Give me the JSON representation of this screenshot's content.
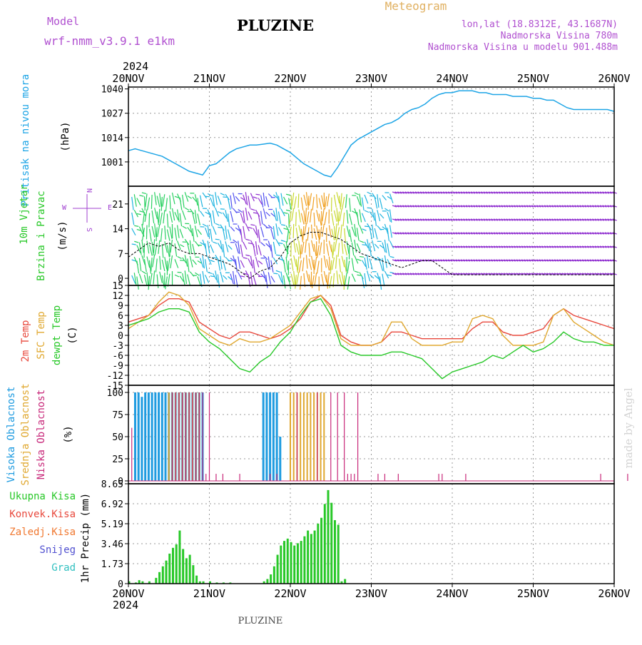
{
  "header": {
    "model_label": "Model",
    "model_name": "wrf-nmm_v3.9.1  e1km",
    "station": "PLUZINE",
    "product": "Meteogram",
    "coords": "lon,lat (18.8312E, 43.1687N)",
    "elevation": "Nadmorska Visina 780m",
    "model_elevation": "Nadmorska Visina u modelu 901.488m",
    "footer": "PLUZINE",
    "watermark": "made by Angel"
  },
  "colors": {
    "pressure": "#1ea5e6",
    "wind_label": "#28c828",
    "wind_label2": "#a040d0",
    "temp2m": "#e8483c",
    "sfc": "#e0a830",
    "dew": "#28c828",
    "high_cloud": "#1e9be0",
    "mid_cloud": "#e0a830",
    "low_cloud": "#c8287a",
    "total_precip": "#28c828",
    "conv": "#e8483c",
    "frz": "#f07830",
    "snow": "#5050d0",
    "hail": "#30c0c0",
    "header_purple": "#b050d0",
    "header_orange": "#e0b060"
  },
  "x_axis": {
    "year": "2024",
    "ticks": [
      "20NOV",
      "21NOV",
      "22NOV",
      "23NOV",
      "24NOV",
      "25NOV",
      "26NOV"
    ],
    "range_hours": [
      0,
      144
    ]
  },
  "chart_data": [
    {
      "type": "line",
      "name": "pressure",
      "ylabels": [
        "Pritisak na nivou mora",
        "(hPa)"
      ],
      "yticks": [
        "1001",
        "1014",
        "1027",
        "1040"
      ],
      "ylim": [
        988,
        1041
      ],
      "x": [
        0,
        2,
        4,
        6,
        8,
        10,
        12,
        14,
        16,
        18,
        20,
        22,
        24,
        26,
        28,
        30,
        32,
        34,
        36,
        38,
        40,
        42,
        44,
        46,
        48,
        50,
        52,
        54,
        56,
        58,
        60,
        62,
        64,
        66,
        68,
        70,
        72,
        74,
        76,
        78,
        80,
        82,
        84,
        86,
        88,
        90,
        92,
        94,
        96,
        98,
        100,
        102,
        104,
        106,
        108,
        110,
        112,
        114,
        116,
        118,
        120,
        122,
        124,
        126,
        128,
        130,
        132,
        134,
        136,
        138,
        140,
        142,
        144
      ],
      "values": [
        1007,
        1008,
        1007,
        1006,
        1005,
        1004,
        1002,
        1000,
        998,
        996,
        995,
        994,
        999,
        1000,
        1003,
        1006,
        1008,
        1009,
        1010,
        1010,
        1010.5,
        1011,
        1010,
        1008,
        1006,
        1003,
        1000,
        998,
        996,
        994,
        993,
        998,
        1004,
        1010,
        1013,
        1015,
        1017,
        1019,
        1021,
        1022,
        1024,
        1027,
        1029,
        1030,
        1032,
        1035,
        1037,
        1038,
        1038,
        1039,
        1039,
        1039,
        1038,
        1038,
        1037,
        1037,
        1037,
        1036,
        1036,
        1036,
        1035,
        1035,
        1034,
        1034,
        1032,
        1030,
        1029,
        1029,
        1029,
        1029,
        1029,
        1029,
        1028
      ]
    },
    {
      "type": "line",
      "name": "wind",
      "ylabels": [
        "10m Vjetar",
        "Brzina i Pravac",
        "(m/s)"
      ],
      "legend_compass": [
        "N",
        "W",
        "E",
        "S"
      ],
      "yticks": [
        "0",
        "7",
        "14",
        "21"
      ],
      "ylim": [
        -2,
        26
      ],
      "x": [
        0,
        3,
        6,
        9,
        12,
        15,
        18,
        21,
        24,
        27,
        30,
        33,
        36,
        39,
        42,
        45,
        48,
        51,
        54,
        57,
        60,
        63,
        66,
        69,
        72,
        75,
        78,
        81,
        84,
        87,
        90,
        93,
        96,
        99,
        102,
        105,
        108,
        111,
        114,
        117,
        120,
        123,
        126,
        129,
        132,
        135,
        138,
        141,
        144
      ],
      "values": [
        6,
        8,
        10,
        9,
        10,
        8,
        7,
        7,
        6,
        5,
        4,
        2,
        0,
        2,
        3,
        6,
        10,
        12,
        13,
        13,
        12,
        11,
        9,
        7,
        6,
        5,
        4,
        3,
        4,
        5,
        5,
        3,
        1,
        1,
        1,
        1,
        1,
        1,
        1,
        1,
        1,
        1,
        1,
        1,
        1,
        1,
        1,
        1,
        1
      ]
    },
    {
      "type": "line",
      "name": "temperature",
      "ylabels": [
        "2m Temp",
        "SFC Temp",
        "dewpt Temp",
        "(C)"
      ],
      "yticks": [
        "-15",
        "-12",
        "-9",
        "-6",
        "-3",
        "0",
        "3",
        "6",
        "9",
        "12",
        "15"
      ],
      "ylim": [
        -15,
        15
      ],
      "x": [
        0,
        3,
        6,
        9,
        12,
        15,
        18,
        21,
        24,
        27,
        30,
        33,
        36,
        39,
        42,
        45,
        48,
        51,
        54,
        57,
        60,
        63,
        66,
        69,
        72,
        75,
        78,
        81,
        84,
        87,
        90,
        93,
        96,
        99,
        102,
        105,
        108,
        111,
        114,
        117,
        120,
        123,
        126,
        129,
        132,
        135,
        138,
        141,
        144
      ],
      "series": [
        {
          "name": "2m Temp",
          "color": "temp2m",
          "values": [
            4,
            5,
            6,
            9,
            11,
            11,
            10,
            4,
            2,
            0,
            -1,
            1,
            1,
            0,
            -1,
            0,
            2,
            5,
            10,
            12,
            9,
            0,
            -2,
            -3,
            -3,
            -2,
            1,
            1,
            0,
            -1,
            -1,
            -1,
            -1,
            -1,
            2,
            4,
            4,
            1,
            0,
            0,
            1,
            2,
            6,
            8,
            6,
            5,
            4,
            3,
            2
          ]
        },
        {
          "name": "SFC Temp",
          "color": "sfc",
          "values": [
            2,
            4,
            6,
            10,
            13,
            12,
            9,
            2,
            0,
            -2,
            -3,
            -1,
            -2,
            -2,
            -1,
            1,
            3,
            7,
            11,
            12,
            8,
            -1,
            -3,
            -3,
            -3,
            -2,
            4,
            4,
            -1,
            -3,
            -3,
            -3,
            -2,
            -2,
            5,
            6,
            5,
            0,
            -3,
            -3,
            -3,
            -2,
            6,
            8,
            4,
            2,
            0,
            -2,
            -3
          ]
        },
        {
          "name": "dewpt Temp",
          "color": "dew",
          "values": [
            3,
            4,
            5,
            7,
            8,
            8,
            7,
            1,
            -2,
            -4,
            -7,
            -10,
            -11,
            -8,
            -6,
            -2,
            1,
            6,
            10,
            11,
            6,
            -3,
            -5,
            -6,
            -6,
            -6,
            -5,
            -5,
            -6,
            -7,
            -10,
            -13,
            -11,
            -10,
            -9,
            -8,
            -6,
            -7,
            -5,
            -3,
            -5,
            -4,
            -2,
            1,
            -1,
            -2,
            -2,
            -3,
            -3
          ]
        }
      ]
    },
    {
      "type": "bar",
      "name": "cloud",
      "ylabels": [
        "Visoka Oblacnost",
        "Srednja Oblacnost",
        "Niska Oblacnost",
        "(%)"
      ],
      "yticks": [
        "0",
        "25",
        "50",
        "75",
        "100"
      ],
      "ylim": [
        0,
        100
      ],
      "series": [
        {
          "name": "Visoka Oblacnost",
          "color": "high_cloud",
          "x": [
            2,
            3,
            4,
            5,
            6,
            7,
            8,
            9,
            10,
            11,
            12,
            13,
            14,
            15,
            16,
            17,
            18,
            19,
            20,
            21,
            22,
            23,
            24,
            25,
            26,
            27,
            28,
            29,
            30,
            31,
            32,
            33,
            34,
            35,
            36,
            37,
            38,
            39,
            40,
            41,
            42,
            43,
            44,
            45,
            46,
            47,
            48,
            49,
            50,
            51,
            52,
            53,
            54,
            55,
            56,
            57,
            58,
            59,
            60,
            61,
            62,
            63,
            64,
            65,
            66,
            67,
            68,
            69,
            70,
            71,
            72,
            73,
            74,
            75,
            76,
            77,
            78,
            79,
            80,
            81,
            82,
            83,
            84,
            85,
            86,
            87,
            88,
            89,
            90,
            91,
            92,
            93,
            94,
            95,
            96,
            97,
            98,
            99,
            100,
            101,
            102,
            103,
            104,
            105,
            106,
            107,
            108,
            109,
            110,
            111,
            112,
            113,
            114,
            115,
            116,
            117,
            118,
            119,
            120,
            121,
            122,
            123,
            124,
            125,
            126,
            127,
            128,
            129,
            130,
            131,
            132,
            133,
            134,
            135,
            136,
            137,
            138,
            139,
            140,
            141,
            142,
            143,
            144
          ],
          "values": [
            100,
            100,
            95,
            100,
            100,
            100,
            100,
            100,
            100,
            100,
            100,
            100,
            100,
            100,
            100,
            100,
            100,
            100,
            100,
            100,
            100,
            0,
            0,
            0,
            0,
            0,
            0,
            0,
            0,
            0,
            0,
            0,
            0,
            0,
            0,
            0,
            0,
            0,
            100,
            100,
            100,
            100,
            100,
            50,
            0,
            0,
            0,
            0,
            0,
            0,
            0,
            0,
            0,
            0,
            0,
            0,
            0,
            0,
            0,
            0,
            0,
            0,
            0,
            0,
            0,
            0,
            0,
            0,
            0,
            0,
            0,
            0,
            0,
            0,
            0,
            0,
            0,
            0,
            0,
            0,
            0,
            0,
            0,
            0,
            0,
            0,
            0,
            0,
            0,
            0,
            0,
            0,
            0,
            0,
            0,
            0,
            0,
            0,
            0,
            0,
            0,
            0,
            0,
            0,
            0,
            0,
            0,
            0,
            0,
            0,
            0,
            0,
            0,
            0,
            0,
            0,
            0,
            0,
            0,
            0,
            0,
            0,
            0,
            0,
            0,
            0,
            0,
            0,
            0,
            0,
            0,
            0,
            0,
            0,
            0,
            0,
            0,
            0,
            0,
            0,
            0,
            0,
            0
          ]
        },
        {
          "name": "Srednja Oblacnost",
          "color": "mid_cloud",
          "x": [
            12,
            13,
            14,
            15,
            16,
            17,
            18,
            19,
            20,
            21,
            48,
            49,
            50,
            51,
            52,
            53,
            54,
            55,
            56,
            57,
            58
          ],
          "values": [
            100,
            100,
            100,
            100,
            100,
            100,
            100,
            100,
            100,
            100,
            100,
            100,
            100,
            100,
            100,
            100,
            100,
            100,
            100,
            100,
            100
          ]
        },
        {
          "name": "Niska Oblacnost",
          "color": "low_cloud",
          "x": [
            1,
            13,
            14,
            15,
            16,
            17,
            18,
            19,
            20,
            21,
            22,
            23,
            24,
            26,
            28,
            33,
            42,
            44,
            50,
            56,
            60,
            62,
            64,
            65,
            66,
            67,
            68,
            74,
            76,
            80,
            92,
            93,
            100,
            140,
            148
          ],
          "values": [
            60,
            100,
            100,
            100,
            100,
            100,
            100,
            100,
            100,
            100,
            100,
            8,
            100,
            8,
            8,
            8,
            8,
            8,
            100,
            100,
            100,
            100,
            100,
            8,
            8,
            8,
            100,
            8,
            8,
            8,
            8,
            8,
            8,
            8,
            8
          ]
        }
      ]
    },
    {
      "type": "bar",
      "name": "precip",
      "ylabels": [
        "1hr Precip (mm)"
      ],
      "legend": [
        "Ukupna Kisa",
        "Konvek.Kisa",
        "Zaledj.Kisa",
        "Snijeg",
        "Grad"
      ],
      "yticks": [
        "0",
        "1.73",
        "3.46",
        "5.19",
        "6.92",
        "8.65"
      ],
      "ylim": [
        0,
        8.65
      ],
      "x": [
        0,
        2,
        3,
        4,
        6,
        8,
        9,
        10,
        11,
        12,
        13,
        14,
        15,
        16,
        17,
        18,
        19,
        20,
        21,
        22,
        24,
        26,
        28,
        30,
        40,
        41,
        42,
        43,
        44,
        45,
        46,
        47,
        48,
        49,
        50,
        51,
        52,
        53,
        54,
        55,
        56,
        57,
        58,
        59,
        60,
        61,
        62,
        63,
        64
      ],
      "values": [
        0.2,
        0.1,
        0.3,
        0.2,
        0.2,
        0.5,
        1.0,
        1.5,
        2.0,
        2.6,
        3.1,
        3.4,
        4.6,
        3.0,
        2.2,
        2.5,
        1.6,
        0.7,
        0.2,
        0.2,
        0.2,
        0.1,
        0.1,
        0.1,
        0.2,
        0.4,
        0.8,
        1.5,
        2.5,
        3.3,
        3.7,
        3.9,
        3.6,
        3.3,
        3.5,
        3.7,
        4.1,
        4.6,
        4.3,
        4.6,
        5.2,
        5.7,
        6.9,
        8.1,
        7.0,
        5.5,
        5.1,
        0.2,
        0.4
      ]
    }
  ]
}
